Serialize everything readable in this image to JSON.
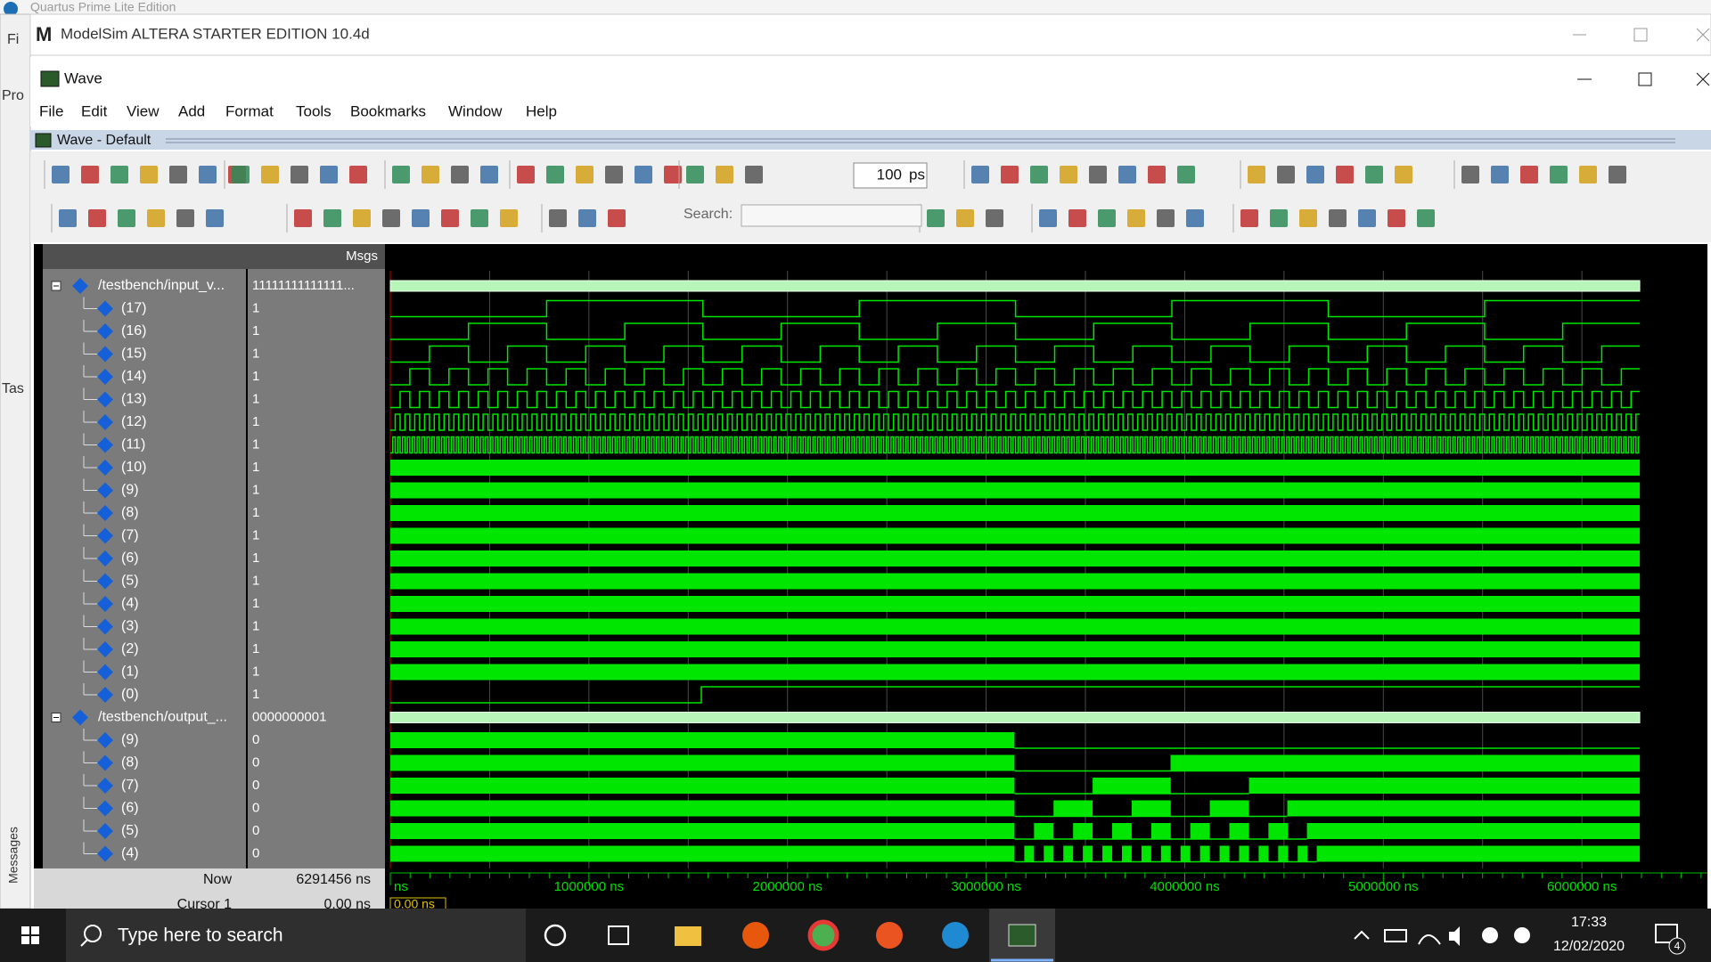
{
  "background_window": {
    "title": "Quartus Prime Lite Edition",
    "side_labels": [
      "Fi",
      "Pro",
      "Tas"
    ]
  },
  "app": {
    "title": "ModelSim ALTERA STARTER EDITION 10.4d"
  },
  "wave_window": {
    "title": "Wave",
    "menu": [
      "File",
      "Edit",
      "View",
      "Add",
      "Format",
      "Tools",
      "Bookmarks",
      "Window",
      "Help"
    ],
    "pane_title": "Wave - Default",
    "toolbar": {
      "zoom_value": "100",
      "zoom_unit": "ps",
      "search_label": "Search:"
    }
  },
  "signals": {
    "header_value": "Msgs",
    "rows": [
      {
        "name": "/testbench/input_v...",
        "value": "11111111111111..."
      },
      {
        "name": "(17)",
        "value": "1"
      },
      {
        "name": "(16)",
        "value": "1"
      },
      {
        "name": "(15)",
        "value": "1"
      },
      {
        "name": "(14)",
        "value": "1"
      },
      {
        "name": "(13)",
        "value": "1"
      },
      {
        "name": "(12)",
        "value": "1"
      },
      {
        "name": "(11)",
        "value": "1"
      },
      {
        "name": "(10)",
        "value": "1"
      },
      {
        "name": "(9)",
        "value": "1"
      },
      {
        "name": "(8)",
        "value": "1"
      },
      {
        "name": "(7)",
        "value": "1"
      },
      {
        "name": "(6)",
        "value": "1"
      },
      {
        "name": "(5)",
        "value": "1"
      },
      {
        "name": "(4)",
        "value": "1"
      },
      {
        "name": "(3)",
        "value": "1"
      },
      {
        "name": "(2)",
        "value": "1"
      },
      {
        "name": "(1)",
        "value": "1"
      },
      {
        "name": "(0)",
        "value": "1"
      },
      {
        "name": "/testbench/output_...",
        "value": "0000000001"
      },
      {
        "name": "(9)",
        "value": "0"
      },
      {
        "name": "(8)",
        "value": "0"
      },
      {
        "name": "(7)",
        "value": "0"
      },
      {
        "name": "(6)",
        "value": "0"
      },
      {
        "name": "(5)",
        "value": "0"
      },
      {
        "name": "(4)",
        "value": "0"
      }
    ]
  },
  "footer": {
    "now_label": "Now",
    "now_value": "6291456 ns",
    "cursor_label": "Cursor 1",
    "cursor_value": "0.00 ns",
    "cursor_marker": "0.00 ns",
    "time_labels": [
      "ns",
      "1000000 ns",
      "2000000 ns",
      "3000000 ns",
      "4000000 ns",
      "5000000 ns",
      "6000000 ns"
    ]
  },
  "messages_tab": "Messages",
  "taskbar": {
    "search": "Type here to search",
    "time": "17:33",
    "date": "12/02/2020",
    "badge": "4"
  }
}
